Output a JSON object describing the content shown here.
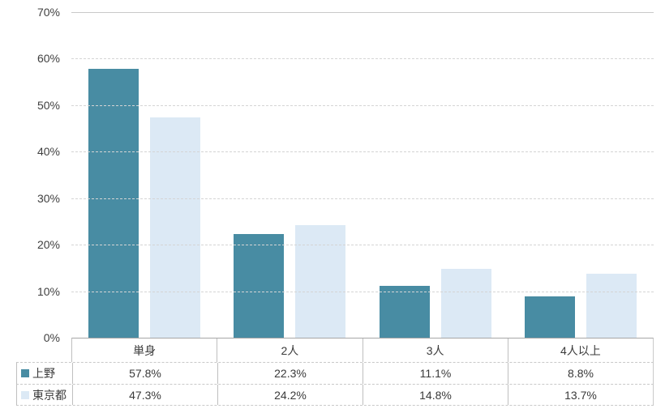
{
  "chart_data": {
    "type": "bar",
    "title": "",
    "categories": [
      "単身",
      "2人",
      "3人",
      "4人以上"
    ],
    "series": [
      {
        "name": "上野",
        "color": "#488CA3",
        "values": [
          57.8,
          22.3,
          11.1,
          8.8
        ]
      },
      {
        "name": "東京都",
        "color": "#DCE9F5",
        "values": [
          47.3,
          24.2,
          14.8,
          13.7
        ]
      }
    ],
    "ylim": [
      0,
      70
    ],
    "yticks": [
      {
        "label": "70%",
        "value": 70
      },
      {
        "label": "60%",
        "value": 60
      },
      {
        "label": "50%",
        "value": 50
      },
      {
        "label": "40%",
        "value": 40
      },
      {
        "label": "30%",
        "value": 30
      },
      {
        "label": "20%",
        "value": 20
      },
      {
        "label": "10%",
        "value": 10
      },
      {
        "label": "0%",
        "value": 0
      }
    ],
    "grid": "horizontal-dashed",
    "legend_position": "table-below-left"
  },
  "table": {
    "header": [
      "単身",
      "2人",
      "3人",
      "4人以上"
    ],
    "rows": [
      {
        "legend": "上野",
        "swatch_color": "#488CA3",
        "cells": [
          "57.8%",
          "22.3%",
          "11.1%",
          "8.8%"
        ]
      },
      {
        "legend": "東京都",
        "swatch_color": "#DCE9F5",
        "cells": [
          "47.3%",
          "24.2%",
          "14.8%",
          "13.7%"
        ]
      }
    ]
  },
  "colors": {
    "background": "#FFFFFF",
    "gridline": "#D4D4D4",
    "axis_line": "#A6A6A6",
    "table_border": "#BFBFBF",
    "text": "#3A3A3A",
    "series_ueno": "#488CA3",
    "series_tokyo": "#DCE9F5"
  }
}
